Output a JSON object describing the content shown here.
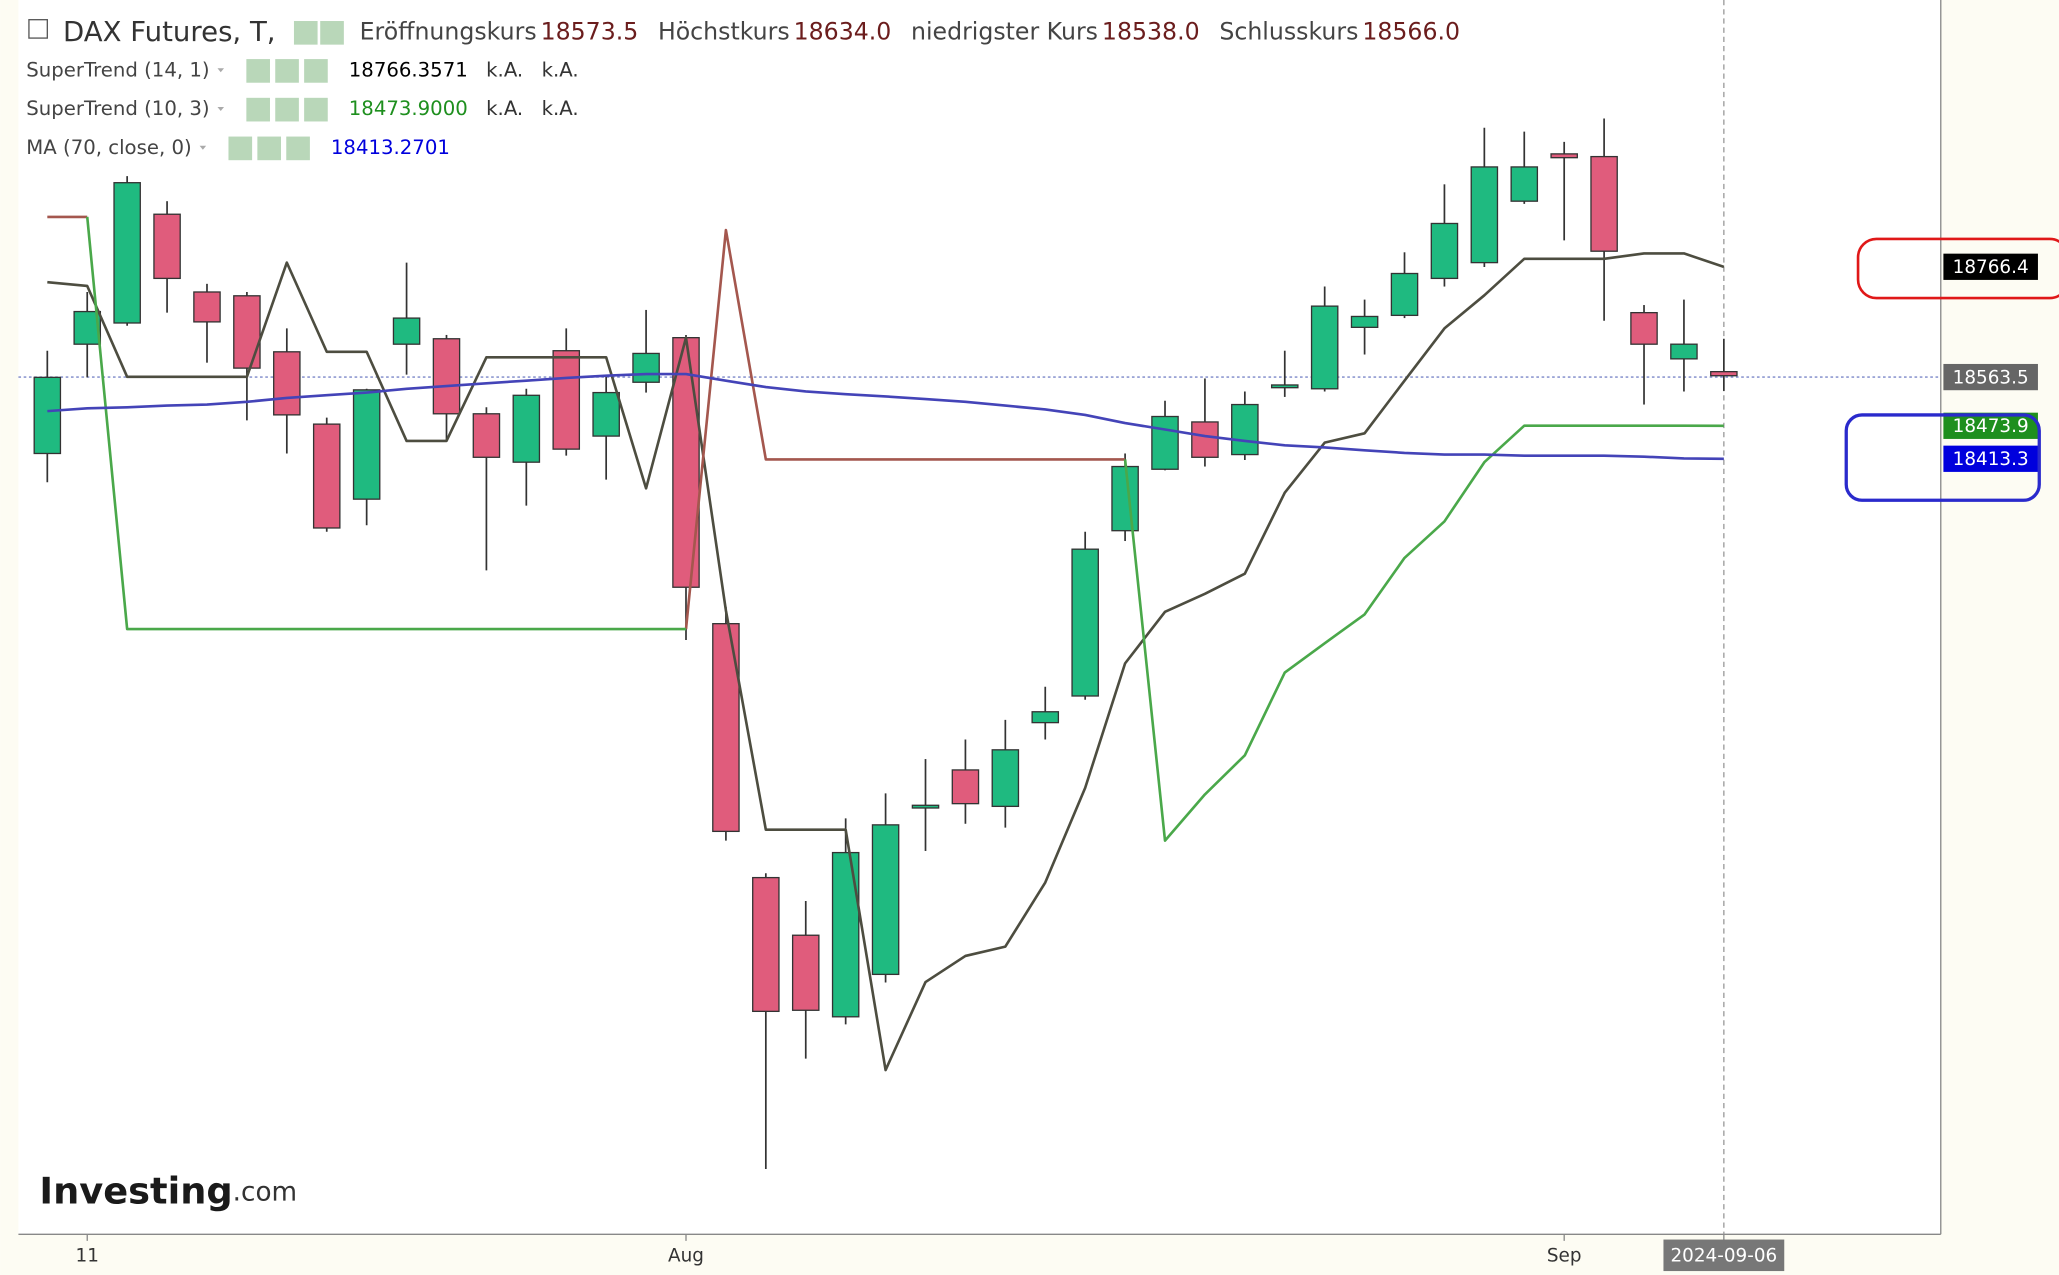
{
  "chart_data": {
    "type": "candlestick",
    "title": "DAX Futures, T,",
    "ohlc_labels": [
      "Eröffnungskurs",
      "Höchstkurs",
      "niedrigster Kurs",
      "Schlusskurs"
    ],
    "ohlc_value_labels": [
      "18573.5",
      "18634.0",
      "18538.0",
      "18566.0"
    ],
    "categories": [
      null,
      "11",
      null,
      null,
      null,
      null,
      null,
      null,
      null,
      null,
      null,
      null,
      null,
      null,
      null,
      null,
      "Aug",
      null,
      null,
      null,
      null,
      null,
      null,
      null,
      null,
      null,
      null,
      null,
      null,
      null,
      null,
      null,
      null,
      null,
      null,
      null,
      null,
      null,
      "Sep",
      null,
      null,
      null,
      "2024-09-06"
    ],
    "open": [
      18423,
      18624,
      18663,
      18863,
      18720,
      18713,
      18610,
      18477,
      18339,
      18624,
      18634,
      18496,
      18407,
      18612,
      18455,
      18554,
      18636,
      18110,
      17643,
      17537,
      17387,
      17465,
      17771,
      17841,
      17774,
      17928,
      17977,
      18281,
      18394,
      18481,
      18421,
      18544,
      18542,
      18655,
      18677,
      18745,
      18774,
      18887,
      18974,
      18969,
      18682,
      18597,
      18573.5
    ],
    "high": [
      18612,
      18720,
      18933,
      18887,
      18735,
      18720,
      18653,
      18489,
      18542,
      18774,
      18641,
      18508,
      18542,
      18653,
      18568,
      18687,
      18641,
      18141,
      17651,
      17600,
      17752,
      17798,
      17861,
      17897,
      17933,
      17994,
      18279,
      18423,
      18520,
      18561,
      18537,
      18612,
      18730,
      18706,
      18793,
      18918,
      19022,
      19015,
      18996,
      19039,
      18696,
      18706,
      18634
    ],
    "low": [
      18370,
      18563,
      18658,
      18682,
      18590,
      18484,
      18423,
      18279,
      18291,
      18568,
      18448,
      18208,
      18327,
      18419,
      18375,
      18535,
      18080,
      17711,
      17107,
      17310,
      17373,
      17450,
      17692,
      17742,
      17735,
      17897,
      17970,
      18262,
      18392,
      18399,
      18411,
      18527,
      18537,
      18605,
      18672,
      18730,
      18766,
      18882,
      18815,
      18667,
      18513,
      18537,
      18538
    ],
    "close": [
      18563,
      18684,
      18921,
      18745,
      18665,
      18580,
      18494,
      18286,
      18540,
      18672,
      18496,
      18416,
      18530,
      18431,
      18535,
      18607,
      18177,
      17728,
      17397,
      17399,
      17689,
      17740,
      17776,
      17779,
      17878,
      17948,
      18247,
      18399,
      18491,
      18416,
      18513,
      18549,
      18694,
      18675,
      18754,
      18846,
      18950,
      18950,
      18967,
      18795,
      18624,
      18624,
      18566
    ],
    "up_color": "#1fba80",
    "down_color": "#e05c7c",
    "series": [
      {
        "name": "SuperTrend (14, 1)",
        "color": "#000000",
        "line_color": "#4d4d40",
        "legend_extra": [
          "k.A.",
          "k.A."
        ],
        "badge_label": "18766.4",
        "values": [
          18738,
          18731,
          18564,
          18564,
          18564,
          18564,
          18774,
          18610,
          18610,
          18446,
          18446,
          18600,
          18600,
          18600,
          18600,
          18359,
          18636,
          18134,
          17731,
          17731,
          17731,
          17289,
          17451,
          17499,
          17516,
          17634,
          17808,
          18037,
          18132,
          18165,
          18202,
          18351,
          18443,
          18460,
          18557,
          18653,
          18714,
          18781,
          18781,
          18781,
          18791,
          18791,
          18766.3571
        ]
      },
      {
        "name": "SuperTrend (10, 3)",
        "color": "#1e8f1e",
        "line_color": "#4aa84a",
        "down_line_color": "#a4574e",
        "legend_value_label": "18473.9000",
        "legend_extra": [
          "k.A.",
          "k.A."
        ],
        "values": [
          null,
          18858,
          18100,
          18100,
          18100,
          18100,
          18100,
          18100,
          18100,
          18100,
          18100,
          18100,
          18100,
          18100,
          18100,
          18100,
          18100,
          null,
          null,
          null,
          null,
          null,
          null,
          null,
          null,
          null,
          null,
          18412,
          17711,
          17796,
          17868,
          18020,
          18074,
          18127,
          18231,
          18298,
          18407,
          18474,
          18474,
          18474,
          18474,
          18474,
          18473.9
        ],
        "down_values": [
          18858,
          18858,
          null,
          null,
          null,
          null,
          null,
          null,
          null,
          null,
          null,
          null,
          null,
          null,
          null,
          null,
          18100,
          18834,
          18412,
          18412,
          18412,
          18412,
          18412,
          18412,
          18412,
          18412,
          18412,
          18412,
          null,
          null,
          null,
          null,
          null,
          null,
          null,
          null,
          null,
          null,
          null,
          null,
          null,
          null,
          null
        ]
      },
      {
        "name": "MA (70, close, 0)",
        "color": "#0000dd",
        "line_color": "#4444b8",
        "badge_label": "18413.3",
        "values": [
          18501,
          18506,
          18508,
          18511,
          18513,
          18518,
          18525,
          18530,
          18535,
          18542,
          18547,
          18552,
          18557,
          18562,
          18566,
          18569,
          18569,
          18557,
          18545,
          18537,
          18532,
          18528,
          18523,
          18518,
          18511,
          18504,
          18494,
          18479,
          18467,
          18455,
          18446,
          18438,
          18434,
          18429,
          18424,
          18421,
          18421,
          18419,
          18419,
          18419,
          18417,
          18414,
          18413.2701
        ]
      }
    ],
    "ylim": [
      16987,
      19257
    ],
    "crosshair_y": 18563.5,
    "watermark": [
      "Investing",
      ".com"
    ]
  }
}
